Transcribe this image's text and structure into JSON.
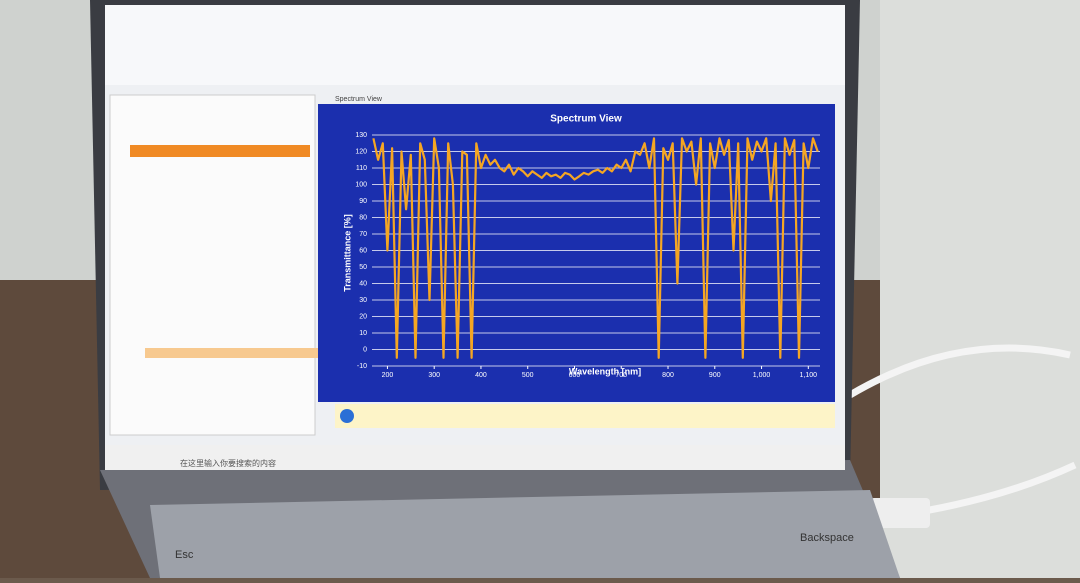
{
  "chart_data": {
    "type": "line",
    "title": "Spectrum View",
    "x_label": "Wavelength [nm]",
    "y_label": "Transmittance [%]",
    "x": [
      170,
      180,
      190,
      200,
      210,
      220,
      230,
      240,
      250,
      260,
      270,
      280,
      290,
      300,
      310,
      320,
      330,
      340,
      350,
      360,
      370,
      380,
      390,
      400,
      410,
      420,
      430,
      440,
      450,
      460,
      470,
      480,
      490,
      500,
      510,
      520,
      530,
      540,
      550,
      560,
      570,
      580,
      590,
      600,
      610,
      620,
      630,
      640,
      650,
      660,
      670,
      680,
      690,
      700,
      710,
      720,
      730,
      740,
      750,
      760,
      770,
      780,
      790,
      800,
      810,
      820,
      830,
      840,
      850,
      860,
      870,
      880,
      890,
      900,
      910,
      920,
      930,
      940,
      950,
      960,
      970,
      980,
      990,
      1000,
      1010,
      1020,
      1030,
      1040,
      1050,
      1060,
      1070,
      1080,
      1090,
      1100,
      1110,
      1120
    ],
    "series": [
      {
        "name": "Transmittance",
        "color": "#f5a623",
        "values": [
          128,
          115,
          125,
          60,
          122,
          -5,
          120,
          85,
          118,
          -5,
          125,
          115,
          30,
          128,
          110,
          -5,
          125,
          100,
          -5,
          120,
          118,
          -5,
          125,
          110,
          118,
          112,
          115,
          110,
          108,
          112,
          106,
          110,
          108,
          105,
          108,
          106,
          104,
          107,
          105,
          106,
          104,
          107,
          106,
          103,
          105,
          107,
          106,
          108,
          109,
          107,
          110,
          108,
          112,
          110,
          115,
          108,
          120,
          118,
          125,
          110,
          128,
          -5,
          122,
          115,
          125,
          40,
          128,
          120,
          126,
          100,
          128,
          -5,
          125,
          110,
          128,
          118,
          127,
          60,
          125,
          -5,
          128,
          115,
          126,
          120,
          128,
          90,
          125,
          -5,
          128,
          118,
          127,
          -5,
          125,
          110,
          128,
          120
        ]
      }
    ],
    "xlim": [
      167,
      1125
    ],
    "ylim": [
      -10,
      130
    ],
    "xticks": [
      200,
      300,
      400,
      500,
      600,
      700,
      800,
      900,
      {
        "value": 1000,
        "label": "1,000"
      },
      {
        "value": 1100,
        "label": "1,100"
      }
    ],
    "yticks": [
      -10,
      0,
      10,
      20,
      30,
      40,
      50,
      60,
      70,
      80,
      90,
      100,
      110,
      120,
      130
    ],
    "grid": true
  },
  "ui": {
    "tab": "Spectrum View",
    "search": "在这里输入你要搜索的内容",
    "keys": [
      "Esc",
      "Backspace"
    ]
  }
}
